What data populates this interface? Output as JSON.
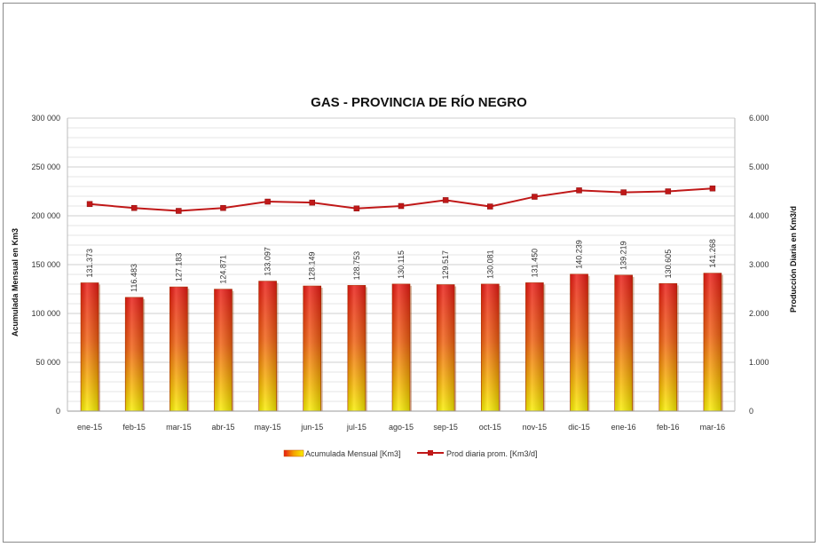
{
  "chart_data": {
    "type": "bar",
    "title": "GAS - PROVINCIA DE RÍO NEGRO",
    "categories": [
      "ene-15",
      "feb-15",
      "mar-15",
      "abr-15",
      "may-15",
      "jun-15",
      "jul-15",
      "ago-15",
      "sep-15",
      "oct-15",
      "nov-15",
      "dic-15",
      "ene-16",
      "feb-16",
      "mar-16"
    ],
    "series": [
      {
        "name": "Acumulada Mensual [Km3]",
        "type": "bar",
        "axis": "left",
        "values": [
          131373,
          116483,
          127183,
          124871,
          133097,
          128149,
          128753,
          130115,
          129517,
          130081,
          131450,
          140239,
          139219,
          130605,
          141268
        ],
        "labels": [
          "131.373",
          "116.483",
          "127.183",
          "124.871",
          "133.097",
          "128.149",
          "128.753",
          "130.115",
          "129.517",
          "130.081",
          "131.450",
          "140.239",
          "139.219",
          "130.605",
          "141.268"
        ]
      },
      {
        "name": "Prod diaria prom. [Km3/d]",
        "type": "line",
        "axis": "right",
        "values": [
          4240,
          4160,
          4100,
          4160,
          4290,
          4270,
          4150,
          4200,
          4320,
          4190,
          4390,
          4520,
          4480,
          4500,
          4560
        ]
      }
    ],
    "ylabel": "Acumulada Mensual en Km3",
    "y2label": "Producción Diaria en Km3/d",
    "ylim": [
      0,
      300000
    ],
    "y2lim": [
      0,
      6000
    ],
    "yticks": [
      "0",
      "50 000",
      "100 000",
      "150 000",
      "200 000",
      "250 000",
      "300 000"
    ],
    "y2ticks": [
      "0",
      "1.000",
      "2.000",
      "3.000",
      "4.000",
      "5.000",
      "6.000"
    ],
    "grid": true,
    "legend": "bottom",
    "colors": {
      "bar_top": "#e51616",
      "bar_mid": "#f5a300",
      "bar_bottom": "#f7f000",
      "line": "#c01818",
      "grid": "#d8d8d8"
    }
  }
}
